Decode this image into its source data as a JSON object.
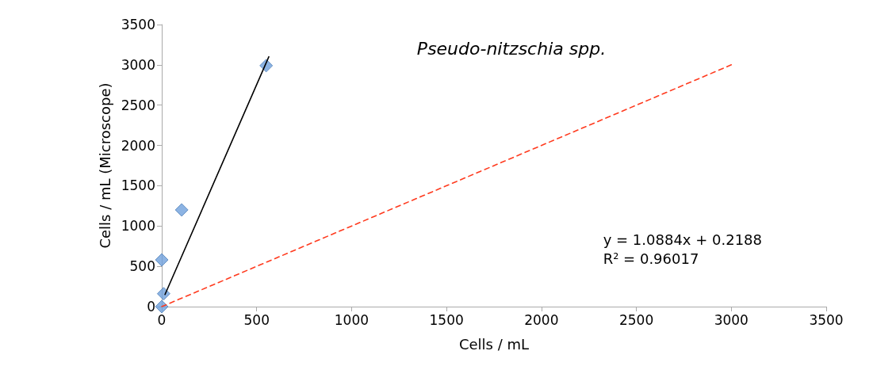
{
  "chart_data": {
    "type": "scatter",
    "title": "Pseudo-nitzschia spp.",
    "xlabel": "Cells / mL",
    "ylabel": "Cells / mL (Microscope)",
    "xlim": [
      0,
      3500
    ],
    "xticks": [
      0,
      500,
      1000,
      1500,
      2000,
      2500,
      3000,
      3500
    ],
    "ylim": [
      0,
      3500
    ],
    "yticks": [
      0,
      500,
      1000,
      1500,
      2000,
      2500,
      3000,
      3500
    ],
    "grid": false,
    "series": [
      {
        "color": "#6fa0dc",
        "marker": "diamond",
        "x": [
          550,
          105,
          0,
          10,
          0
        ],
        "values": [
          2990,
          1200,
          580,
          160,
          0
        ]
      },
      {
        "type": "line",
        "color": "#000000",
        "marker": "none",
        "line_style": "solid",
        "x": [
          17,
          564
        ],
        "values": [
          150,
          3100
        ]
      },
      {
        "type": "line",
        "color": "#ff3b1f",
        "marker": "none",
        "line_style": "dashed",
        "x": [
          0,
          3000
        ],
        "values": [
          0,
          3000
        ]
      }
    ],
    "annotations": [
      "y = 1.0884x + 0.2188\nR² = 0.96017"
    ]
  }
}
